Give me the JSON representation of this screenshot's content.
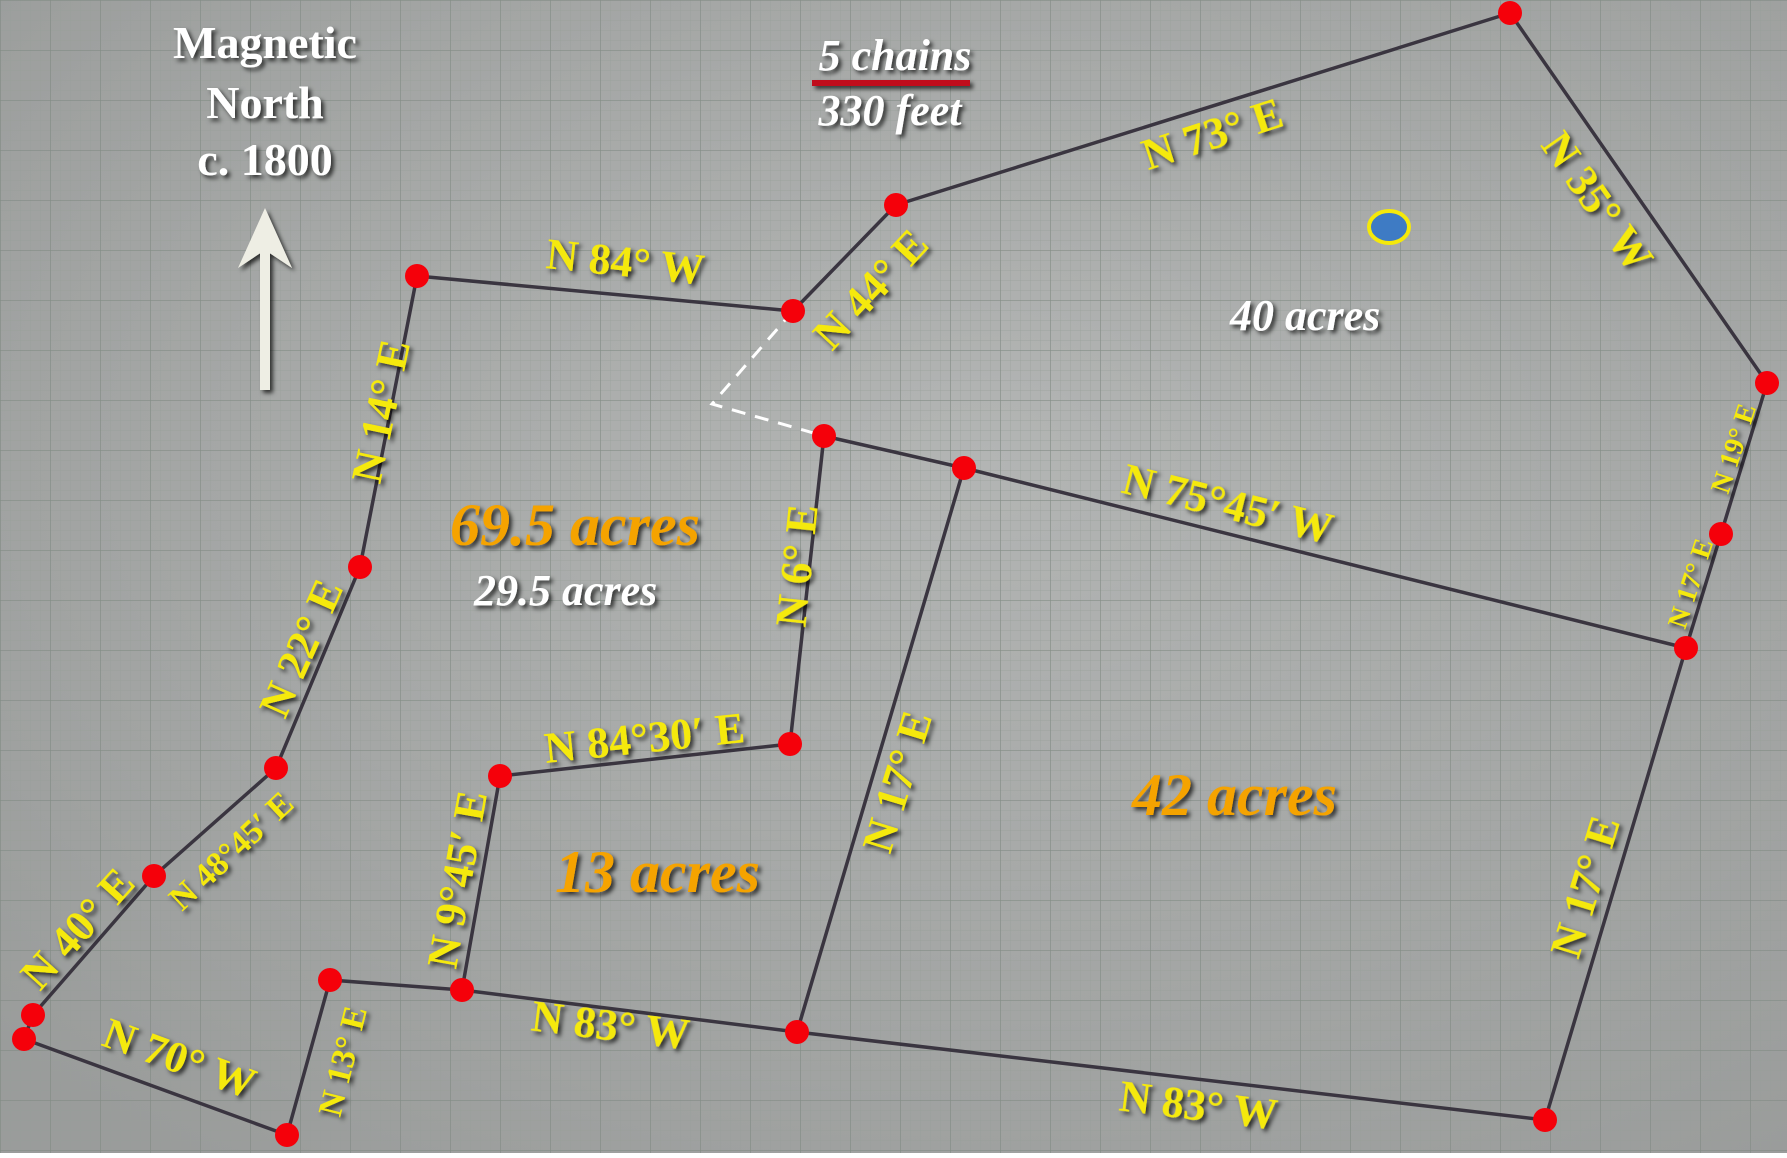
{
  "north_label": {
    "line1": "Magnetic",
    "line2": "North",
    "line3": "c. 1800"
  },
  "scale": {
    "chains": "5 chains",
    "feet": "330 feet",
    "bar_color": "#c0101a"
  },
  "bearings": {
    "n84w": "N 84° W",
    "n44e": "N 44° E",
    "n73e": "N 73° E",
    "n35w": "N 35° W",
    "n14e": "N 14° E",
    "n22e": "N 22° E",
    "n4845e": "N 48°45′ E",
    "n40e": "N 40° E",
    "n70w": "N 70° W",
    "n13e": "N 13° E",
    "n945e": "N 9°45′ E",
    "n8430e": "N 84°30′ E",
    "n6e": "N 6° E",
    "n17e_mid": "N 17° E",
    "n7545w": "N 75°45′ W",
    "n19e": "N 19° E",
    "n17e_small": "N 17° E",
    "n17e_right": "N 17° E",
    "n83w_left": "N 83° W",
    "n83w_right": "N 83° W"
  },
  "areas": {
    "a69": "69.5 acres",
    "a29": "29.5 acres",
    "a40": "40 acres",
    "a13": "13 acres",
    "a42": "42 acres"
  },
  "colors": {
    "background": "#a7a9a8",
    "grid": "#8e9690",
    "boundary": "#3a3540",
    "corner": "#f5000a",
    "bearing_text": "#f5e90a",
    "acre_text": "#f5a300",
    "marker_fill": "#3e7bc4",
    "marker_ring": "#f5e90a"
  }
}
